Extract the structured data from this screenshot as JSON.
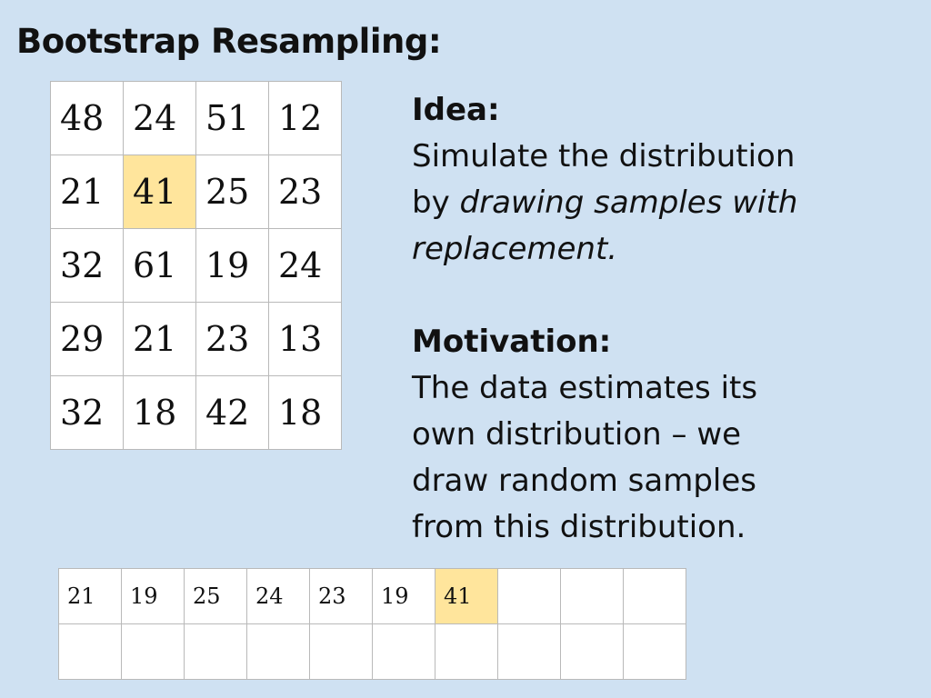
{
  "title": "Bootstrap Resampling:",
  "data_grid": {
    "rows": [
      [
        "48",
        "24",
        "51",
        "12"
      ],
      [
        "21",
        "41",
        "25",
        "23"
      ],
      [
        "32",
        "61",
        "19",
        "24"
      ],
      [
        "29",
        "21",
        "23",
        "13"
      ],
      [
        "32",
        "18",
        "42",
        "18"
      ]
    ]
  },
  "sample_grid": {
    "rows": [
      [
        "21",
        "19",
        "25",
        "24",
        "23",
        "19",
        "41",
        "",
        "",
        ""
      ],
      [
        "",
        "",
        "",
        "",
        "",
        "",
        "",
        "",
        "",
        ""
      ]
    ]
  },
  "highlight_color": "#ffe59c",
  "background_color": "#cfe1f2",
  "idea": {
    "heading": "Idea:",
    "line1": "Simulate the distribution",
    "line2_prefix": "by ",
    "line2_italic": "drawing samples with",
    "line3_italic": "replacement."
  },
  "motivation": {
    "heading": "Motivation:",
    "line1": "The data estimates its",
    "line2": "own distribution – we",
    "line3": "draw random samples",
    "line4": "from this distribution."
  }
}
